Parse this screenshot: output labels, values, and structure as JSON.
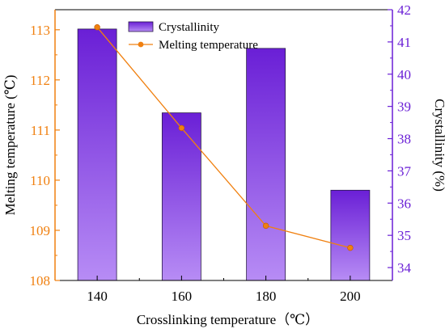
{
  "chart_data": {
    "type": "bar+line",
    "categories": [
      "140",
      "160",
      "180",
      "200"
    ],
    "xlabel": "Crosslinking temperature（℃）",
    "series": [
      {
        "name": "Crystallinity",
        "type": "bar",
        "axis": "right",
        "values": [
          41.4,
          38.8,
          40.8,
          36.4
        ],
        "color_top": "#6a1fd6",
        "color_bottom": "#b78cf5"
      },
      {
        "name": "Melting temperature",
        "type": "line",
        "axis": "left",
        "values": [
          113.05,
          111.04,
          109.09,
          108.65
        ],
        "color": "#f08010"
      }
    ],
    "left_axis": {
      "label": "Melting temperature (℃)",
      "ylim": [
        108,
        113.4
      ],
      "ticks": [
        "108",
        "109",
        "110",
        "111",
        "112",
        "113"
      ],
      "color": "#f08010"
    },
    "right_axis": {
      "label": "Crystallinity (%)",
      "ylim": [
        33.6,
        42
      ],
      "ticks": [
        "34",
        "35",
        "36",
        "37",
        "38",
        "39",
        "40",
        "41",
        "42"
      ],
      "color": "#6a1fd6"
    },
    "legend": {
      "placement": "top-center",
      "items": [
        "Crystallinity",
        "Melting temperature"
      ]
    }
  }
}
